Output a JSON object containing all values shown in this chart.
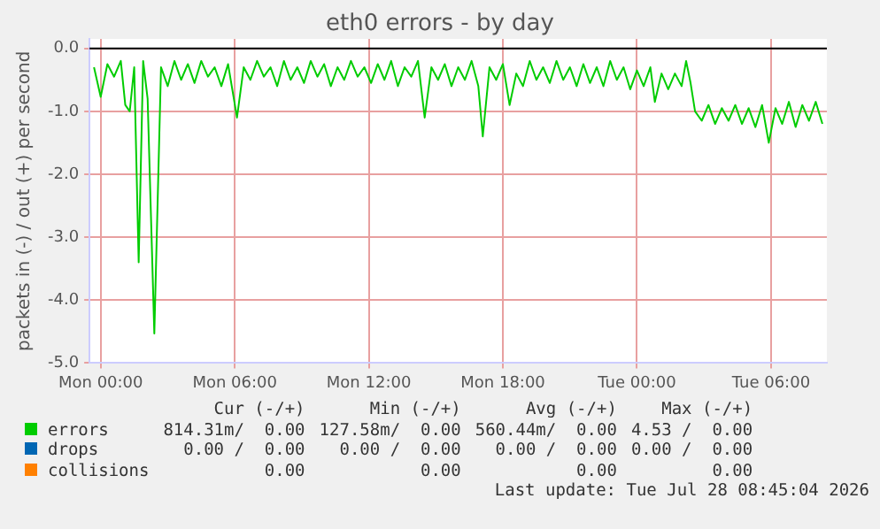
{
  "chart_data": {
    "type": "line",
    "title": "eth0 errors - by day",
    "ylabel": "packets in (-) / out (+) per second",
    "xlim": [
      "2026-07-26T23:30",
      "2026-07-28T08:30"
    ],
    "xticks": [
      {
        "value": "2026-07-27T00:00",
        "label": "Mon 00:00"
      },
      {
        "value": "2026-07-27T06:00",
        "label": "Mon 06:00"
      },
      {
        "value": "2026-07-27T12:00",
        "label": "Mon 12:00"
      },
      {
        "value": "2026-07-27T18:00",
        "label": "Mon 18:00"
      },
      {
        "value": "2026-07-28T00:00",
        "label": "Tue 00:00"
      },
      {
        "value": "2026-07-28T06:00",
        "label": "Tue 06:00"
      }
    ],
    "ylim": [
      -5,
      0.15
    ],
    "yticks": [
      {
        "value": -5,
        "label": "-5.0"
      },
      {
        "value": -4,
        "label": "-4.0"
      },
      {
        "value": -3,
        "label": "-3.0"
      },
      {
        "value": -2,
        "label": "-2.0"
      },
      {
        "value": -1,
        "label": "-1.0"
      },
      {
        "value": 0,
        "label": "0.0"
      }
    ],
    "grid": true,
    "legend": "bottom",
    "marker": "none",
    "line_style": "solid",
    "ref_lines": [
      {
        "axis": "y",
        "value": 0,
        "color": "#000000"
      }
    ],
    "series": [
      {
        "name": "errors",
        "color": "#00cc00",
        "x": [
          "2026-07-26T23:42",
          "2026-07-27T00:00",
          "2026-07-27T00:18",
          "2026-07-27T00:36",
          "2026-07-27T00:54",
          "2026-07-27T01:06",
          "2026-07-27T01:18",
          "2026-07-27T01:30",
          "2026-07-27T01:42",
          "2026-07-27T01:54",
          "2026-07-27T02:06",
          "2026-07-27T02:24",
          "2026-07-27T02:42",
          "2026-07-27T03:00",
          "2026-07-27T03:18",
          "2026-07-27T03:36",
          "2026-07-27T03:54",
          "2026-07-27T04:12",
          "2026-07-27T04:30",
          "2026-07-27T04:48",
          "2026-07-27T05:06",
          "2026-07-27T05:24",
          "2026-07-27T05:42",
          "2026-07-27T06:06",
          "2026-07-27T06:24",
          "2026-07-27T06:42",
          "2026-07-27T07:00",
          "2026-07-27T07:18",
          "2026-07-27T07:36",
          "2026-07-27T07:54",
          "2026-07-27T08:12",
          "2026-07-27T08:30",
          "2026-07-27T08:48",
          "2026-07-27T09:06",
          "2026-07-27T09:24",
          "2026-07-27T09:42",
          "2026-07-27T10:00",
          "2026-07-27T10:18",
          "2026-07-27T10:36",
          "2026-07-27T10:54",
          "2026-07-27T11:12",
          "2026-07-27T11:30",
          "2026-07-27T11:48",
          "2026-07-27T12:06",
          "2026-07-27T12:24",
          "2026-07-27T12:42",
          "2026-07-27T13:00",
          "2026-07-27T13:18",
          "2026-07-27T13:36",
          "2026-07-27T13:54",
          "2026-07-27T14:12",
          "2026-07-27T14:30",
          "2026-07-27T14:48",
          "2026-07-27T15:06",
          "2026-07-27T15:24",
          "2026-07-27T15:42",
          "2026-07-27T16:00",
          "2026-07-27T16:18",
          "2026-07-27T16:36",
          "2026-07-27T16:54",
          "2026-07-27T17:06",
          "2026-07-27T17:24",
          "2026-07-27T17:42",
          "2026-07-27T18:00",
          "2026-07-27T18:18",
          "2026-07-27T18:36",
          "2026-07-27T18:54",
          "2026-07-27T19:12",
          "2026-07-27T19:30",
          "2026-07-27T19:48",
          "2026-07-27T20:06",
          "2026-07-27T20:24",
          "2026-07-27T20:42",
          "2026-07-27T21:00",
          "2026-07-27T21:18",
          "2026-07-27T21:36",
          "2026-07-27T21:54",
          "2026-07-27T22:12",
          "2026-07-27T22:30",
          "2026-07-27T22:48",
          "2026-07-27T23:06",
          "2026-07-27T23:24",
          "2026-07-27T23:42",
          "2026-07-28T00:00",
          "2026-07-28T00:18",
          "2026-07-28T00:36",
          "2026-07-28T00:48",
          "2026-07-28T01:06",
          "2026-07-28T01:24",
          "2026-07-28T01:42",
          "2026-07-28T02:00",
          "2026-07-28T02:12",
          "2026-07-28T02:24",
          "2026-07-28T02:36",
          "2026-07-28T02:54",
          "2026-07-28T03:12",
          "2026-07-28T03:30",
          "2026-07-28T03:48",
          "2026-07-28T04:06",
          "2026-07-28T04:24",
          "2026-07-28T04:42",
          "2026-07-28T05:00",
          "2026-07-28T05:18",
          "2026-07-28T05:36",
          "2026-07-28T05:54",
          "2026-07-28T06:12",
          "2026-07-28T06:30",
          "2026-07-28T06:48",
          "2026-07-28T07:06",
          "2026-07-28T07:24",
          "2026-07-28T07:42",
          "2026-07-28T08:00",
          "2026-07-28T08:18"
        ],
        "values": [
          -0.3,
          -0.77,
          -0.25,
          -0.45,
          -0.2,
          -0.9,
          -1.0,
          -0.3,
          -3.4,
          -0.2,
          -0.8,
          -4.53,
          -0.3,
          -0.6,
          -0.2,
          -0.5,
          -0.25,
          -0.55,
          -0.2,
          -0.45,
          -0.3,
          -0.6,
          -0.25,
          -1.1,
          -0.3,
          -0.5,
          -0.2,
          -0.45,
          -0.3,
          -0.6,
          -0.2,
          -0.5,
          -0.3,
          -0.55,
          -0.2,
          -0.45,
          -0.25,
          -0.6,
          -0.3,
          -0.5,
          -0.2,
          -0.45,
          -0.3,
          -0.55,
          -0.25,
          -0.5,
          -0.2,
          -0.6,
          -0.3,
          -0.45,
          -0.2,
          -1.1,
          -0.3,
          -0.5,
          -0.25,
          -0.6,
          -0.3,
          -0.5,
          -0.2,
          -0.6,
          -1.4,
          -0.3,
          -0.5,
          -0.25,
          -0.9,
          -0.4,
          -0.6,
          -0.2,
          -0.5,
          -0.3,
          -0.55,
          -0.2,
          -0.5,
          -0.3,
          -0.6,
          -0.25,
          -0.55,
          -0.3,
          -0.6,
          -0.2,
          -0.5,
          -0.3,
          -0.65,
          -0.35,
          -0.6,
          -0.3,
          -0.85,
          -0.4,
          -0.65,
          -0.4,
          -0.6,
          -0.2,
          -0.55,
          -1.0,
          -1.15,
          -0.9,
          -1.2,
          -0.95,
          -1.15,
          -0.9,
          -1.2,
          -0.95,
          -1.25,
          -0.9,
          -1.5,
          -0.95,
          -1.2,
          -0.85,
          -1.25,
          -0.9,
          -1.15,
          -0.85,
          -1.2
        ]
      },
      {
        "name": "drops",
        "color": "#0066b3"
      },
      {
        "name": "collisions",
        "color": "#ff8000"
      }
    ],
    "annotations": [
      "Cur (-/+)",
      "Min (-/+)",
      "Avg (-/+)",
      "Max (-/+)",
      "814.31m/  0.00",
      "127.58m/  0.00",
      "560.44m/  0.00",
      "4.53 /  0.00",
      "0.00 /  0.00",
      "0.00 /  0.00",
      "0.00 /  0.00",
      "0.00 /  0.00",
      "0.00",
      "0.00",
      "0.00",
      "0.00",
      "Last update: Tue Jul 28 08:45:04 2026"
    ]
  }
}
